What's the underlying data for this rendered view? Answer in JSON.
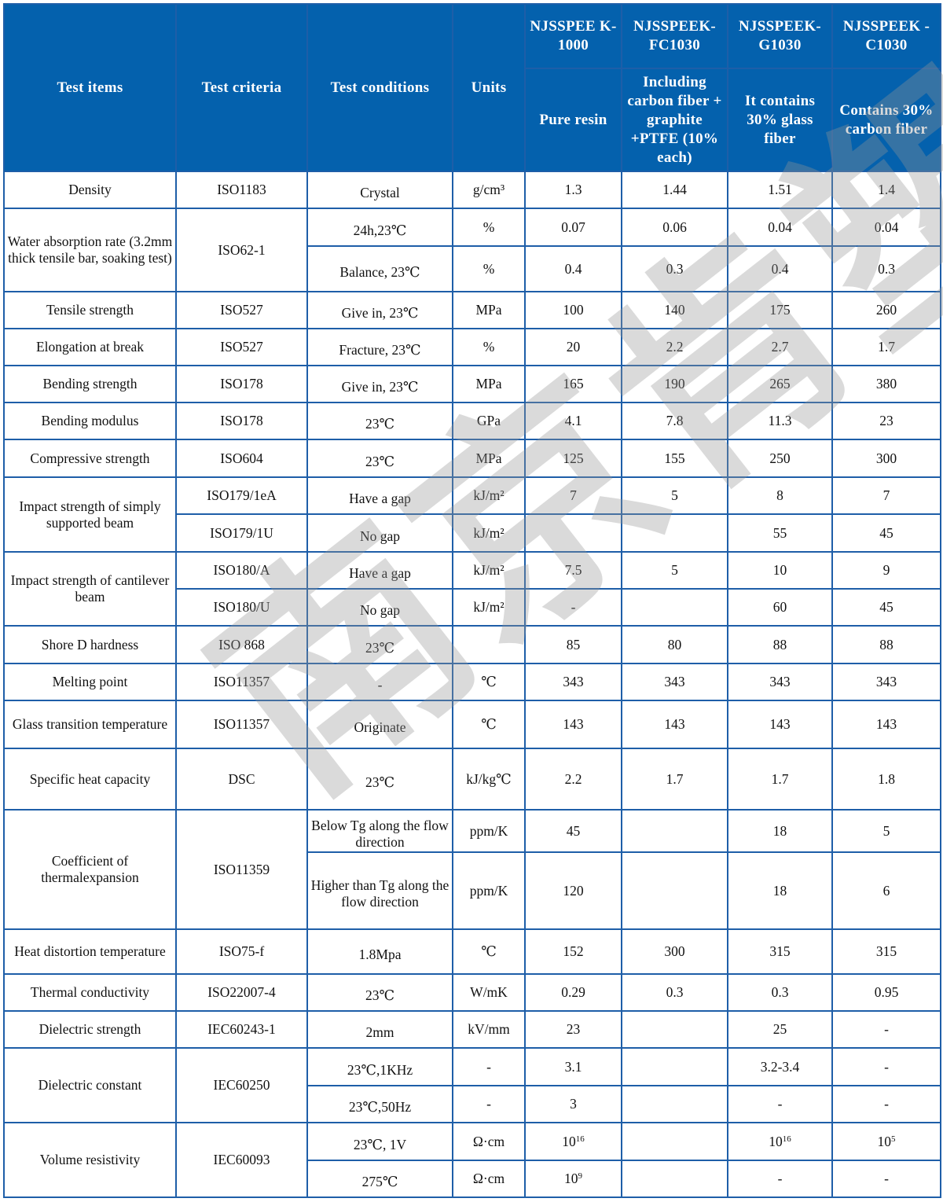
{
  "header": {
    "test_items": "Test items",
    "test_criteria": "Test criteria",
    "test_conditions": "Test conditions",
    "units": "Units",
    "products": [
      {
        "name": "NJSSPEEK-1000",
        "name_display": "NJSSPEE K-1000",
        "description": "Pure resin"
      },
      {
        "name": "NJSSPEEK-FC1030",
        "name_display": "NJSSPEEK- FC1030",
        "description": "Including carbon fiber + graphite +PTFE (10% each)"
      },
      {
        "name": "NJSSPEEK-G1030",
        "name_display": "NJSSPEEK- G1030",
        "description": "It contains 30% glass fiber"
      },
      {
        "name": "NJSSPEEK-C1030",
        "name_display": "NJSSPEEK -C1030",
        "description": "Contains 30% carbon fiber"
      }
    ]
  },
  "rows": [
    {
      "item": "Density",
      "criteria": "ISO1183",
      "subs": [
        {
          "condition": "Crystal",
          "unit": "g/cm³",
          "values": [
            "1.3",
            "1.44",
            "1.51",
            "1.4"
          ]
        }
      ]
    },
    {
      "item": "Water absorption rate (3.2mm thick tensile bar, soaking test)",
      "criteria": "ISO62-1",
      "subs": [
        {
          "condition": "24h,23℃",
          "unit": "%",
          "values": [
            "0.07",
            "0.06",
            "0.04",
            "0.04"
          ]
        },
        {
          "condition": "Balance, 23℃",
          "unit": "%",
          "values": [
            "0.4",
            "0.3",
            "0.4",
            "0.3"
          ]
        }
      ]
    },
    {
      "item": "Tensile strength",
      "criteria": "ISO527",
      "subs": [
        {
          "condition": "Give in, 23℃",
          "unit": "MPa",
          "values": [
            "100",
            "140",
            "175",
            "260"
          ]
        }
      ]
    },
    {
      "item": "Elongation at break",
      "criteria": "ISO527",
      "subs": [
        {
          "condition": "Fracture, 23℃",
          "unit": "%",
          "values": [
            "20",
            "2.2",
            "2.7",
            "1.7"
          ]
        }
      ]
    },
    {
      "item": "Bending strength",
      "criteria": "ISO178",
      "subs": [
        {
          "condition": "Give in, 23℃",
          "unit": "MPa",
          "values": [
            "165",
            "190",
            "265",
            "380"
          ]
        }
      ]
    },
    {
      "item": "Bending modulus",
      "criteria": "ISO178",
      "subs": [
        {
          "condition": "23℃",
          "unit": "GPa",
          "values": [
            "4.1",
            "7.8",
            "11.3",
            "23"
          ]
        }
      ]
    },
    {
      "item": "Compressive strength",
      "criteria": "ISO604",
      "subs": [
        {
          "condition": "23℃",
          "unit": "MPa",
          "values": [
            "125",
            "155",
            "250",
            "300"
          ]
        }
      ]
    },
    {
      "item": "Impact strength of simply supported beam",
      "subs": [
        {
          "criteria": "ISO179/1eA",
          "condition": "Have a gap",
          "unit": "kJ/m²",
          "values": [
            "7",
            "5",
            "8",
            "7"
          ]
        },
        {
          "criteria": "ISO179/1U",
          "condition": "No gap",
          "unit": "kJ/m²",
          "values": [
            "",
            "",
            "55",
            "45"
          ]
        }
      ]
    },
    {
      "item": "Impact strength of cantilever beam",
      "subs": [
        {
          "criteria": "ISO180/A",
          "condition": "Have a gap",
          "unit": "kJ/m²",
          "values": [
            "7.5",
            "5",
            "10",
            "9"
          ]
        },
        {
          "criteria": "ISO180/U",
          "condition": "No gap",
          "unit": "kJ/m²",
          "values": [
            "-",
            "",
            "60",
            "45"
          ]
        }
      ]
    },
    {
      "item": "Shore D hardness",
      "criteria": "ISO 868",
      "subs": [
        {
          "condition": "23℃",
          "unit": "",
          "values": [
            "85",
            "80",
            "88",
            "88"
          ]
        }
      ]
    },
    {
      "item": "Melting point",
      "criteria": "ISO11357",
      "subs": [
        {
          "condition": "-",
          "unit": "℃",
          "values": [
            "343",
            "343",
            "343",
            "343"
          ]
        }
      ]
    },
    {
      "item": "Glass transition temperature",
      "criteria": "ISO11357",
      "subs": [
        {
          "condition": "Originate",
          "unit": "℃",
          "values": [
            "143",
            "143",
            "143",
            "143"
          ]
        }
      ]
    },
    {
      "item": "Specific heat capacity",
      "criteria": "DSC",
      "subs": [
        {
          "condition": "23℃",
          "unit": "kJ/kg℃",
          "values": [
            "2.2",
            "1.7",
            "1.7",
            "1.8"
          ]
        }
      ]
    },
    {
      "item": "Coefficient of thermalexpansion",
      "criteria": "ISO11359",
      "subs": [
        {
          "condition": "Below Tg along the flow direction",
          "unit": "ppm/K",
          "values": [
            "45",
            "",
            "18",
            "5"
          ]
        },
        {
          "condition": "Higher than Tg along the flow direction",
          "unit": "ppm/K",
          "values": [
            "120",
            "",
            "18",
            "6"
          ]
        }
      ]
    },
    {
      "item": "Heat distortion temperature",
      "criteria": "ISO75-f",
      "subs": [
        {
          "condition": "1.8Mpa",
          "unit": "℃",
          "values": [
            "152",
            "300",
            "315",
            "315"
          ]
        }
      ]
    },
    {
      "item": "Thermal conductivity",
      "criteria": "ISO22007-4",
      "subs": [
        {
          "condition": "23℃",
          "unit": "W/mK",
          "values": [
            "0.29",
            "0.3",
            "0.3",
            "0.95"
          ]
        }
      ]
    },
    {
      "item": "Dielectric strength",
      "criteria": "IEC60243-1",
      "subs": [
        {
          "condition": "2mm",
          "unit": "kV/mm",
          "values": [
            "23",
            "",
            "25",
            "-"
          ]
        }
      ]
    },
    {
      "item": "Dielectric constant",
      "criteria": "IEC60250",
      "subs": [
        {
          "condition": "23℃,1KHz",
          "unit": "-",
          "values": [
            "3.1",
            "",
            "3.2-3.4",
            "-"
          ]
        },
        {
          "condition": "23℃,50Hz",
          "unit": "-",
          "values": [
            "3",
            "",
            "-",
            "-"
          ]
        }
      ]
    },
    {
      "item": "Volume resistivity",
      "criteria": "IEC60093",
      "subs": [
        {
          "condition": "23℃, 1V",
          "unit": "Ω·cm",
          "values": [
            "10^16",
            "",
            "10^16",
            "10^5"
          ]
        },
        {
          "condition": "275℃",
          "unit": "Ω·cm",
          "values": [
            "10^9",
            "",
            "-",
            "-"
          ]
        }
      ]
    }
  ],
  "watermark": "南京肯塑",
  "colors": {
    "header_bg": "#0461ad",
    "border": "#1e5ea8"
  }
}
